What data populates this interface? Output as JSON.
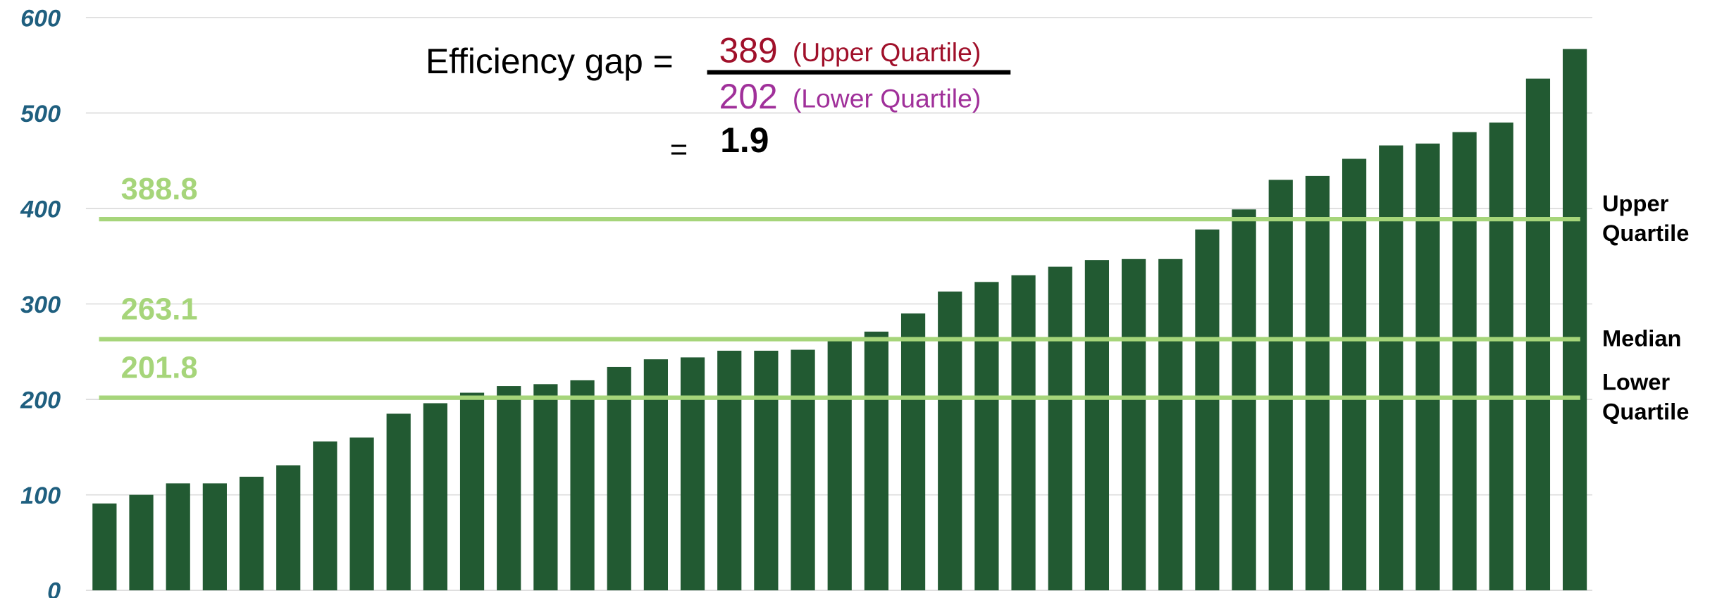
{
  "chart_data": {
    "type": "bar",
    "color": "#225a32",
    "values": [
      91,
      100,
      112,
      112,
      119,
      131,
      156,
      160,
      185,
      196,
      207,
      214,
      216,
      220,
      234,
      242,
      244,
      251,
      251,
      252,
      262,
      271,
      290,
      313,
      323,
      330,
      339,
      346,
      347,
      347,
      378,
      399,
      430,
      434,
      452,
      466,
      468,
      480,
      490,
      536,
      567
    ],
    "ylim": [
      0,
      600
    ],
    "yticks": [
      0,
      100,
      200,
      300,
      400,
      500,
      600
    ],
    "grid": true,
    "reference_lines": [
      {
        "value": 388.8,
        "name": "Upper Quartile"
      },
      {
        "value": 263.1,
        "name": "Median"
      },
      {
        "value": 201.8,
        "name": "Lower Quartile"
      }
    ],
    "reference_color": "#a6d57a",
    "formula": {
      "lhs": "Efficiency gap =",
      "numerator": 389,
      "numerator_label": "(Upper Quartile)",
      "denominator": 202,
      "denominator_label": "(Lower Quartile)",
      "equals": "=",
      "result": 1.9
    }
  }
}
